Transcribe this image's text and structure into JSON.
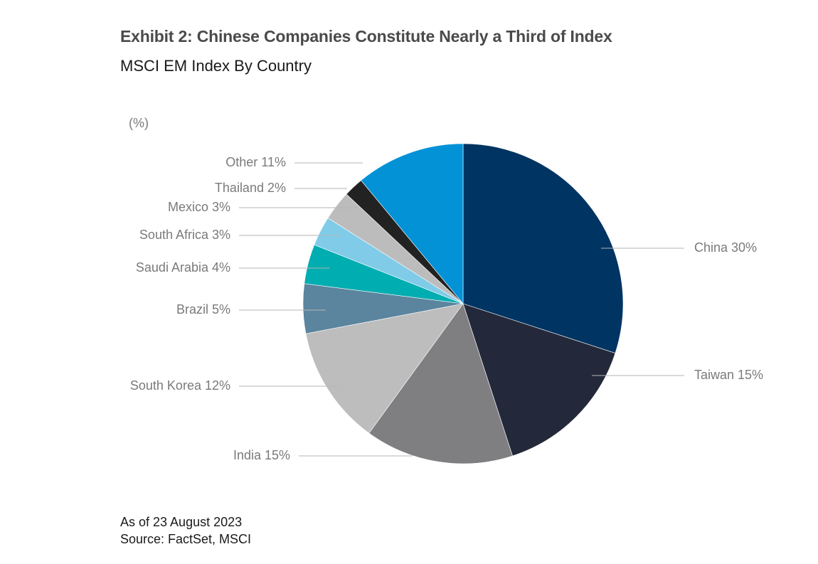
{
  "header": {
    "title": "Exhibit 2: Chinese Companies Constitute Nearly a Third of Index",
    "subtitle": "MSCI EM Index By Country",
    "unit_label": "(%)"
  },
  "footer": {
    "date": "As of 23 August 2023",
    "source": "Source: FactSet, MSCI"
  },
  "chart_data": {
    "type": "pie",
    "title": "Exhibit 2: Chinese Companies Constitute Nearly a Third of Index",
    "subtitle": "MSCI EM Index By Country",
    "unit": "(%)",
    "start_angle": "12 o'clock",
    "direction": "clockwise",
    "slices": [
      {
        "name": "China",
        "value": 30,
        "label": "China 30%",
        "color": "#003462"
      },
      {
        "name": "Taiwan",
        "value": 15,
        "label": "Taiwan 15%",
        "color": "#23293a"
      },
      {
        "name": "India",
        "value": 15,
        "label": "India 15%",
        "color": "#7f7f82"
      },
      {
        "name": "South Korea",
        "value": 12,
        "label": "South Korea 12%",
        "color": "#bdbdbd"
      },
      {
        "name": "Brazil",
        "value": 5,
        "label": "Brazil 5%",
        "color": "#5b849e"
      },
      {
        "name": "Saudi Arabia",
        "value": 4,
        "label": "Saudi Arabia 4%",
        "color": "#00adb0"
      },
      {
        "name": "South Africa",
        "value": 3,
        "label": "South Africa 3%",
        "color": "#80cbe8"
      },
      {
        "name": "Mexico",
        "value": 3,
        "label": "Mexico 3%",
        "color": "#bcbcbc"
      },
      {
        "name": "Thailand",
        "value": 2,
        "label": "Thailand 2%",
        "color": "#222222"
      },
      {
        "name": "Other",
        "value": 11,
        "label": "Other 11%",
        "color": "#0392d6"
      }
    ]
  }
}
